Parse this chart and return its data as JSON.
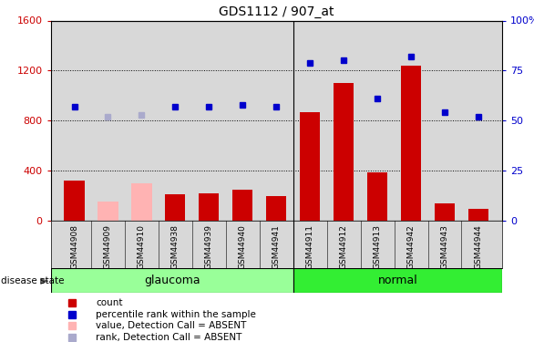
{
  "title": "GDS1112 / 907_at",
  "samples": [
    "GSM44908",
    "GSM44909",
    "GSM44910",
    "GSM44938",
    "GSM44939",
    "GSM44940",
    "GSM44941",
    "GSM44911",
    "GSM44912",
    "GSM44913",
    "GSM44942",
    "GSM44943",
    "GSM44944"
  ],
  "glaucoma_count": 7,
  "counts": [
    320,
    155,
    295,
    210,
    220,
    250,
    195,
    870,
    1100,
    385,
    1240,
    140,
    95
  ],
  "ranks": [
    57,
    52,
    53,
    57,
    57,
    58,
    57,
    79,
    80,
    61,
    82,
    54,
    52
  ],
  "absent": [
    false,
    true,
    true,
    false,
    false,
    false,
    false,
    false,
    false,
    false,
    false,
    false,
    false
  ],
  "count_color_normal": "#cc0000",
  "count_color_absent": "#ffb3b3",
  "rank_color_normal": "#0000cc",
  "rank_color_absent": "#aaaacc",
  "ylim_left": [
    0,
    1600
  ],
  "ylim_right": [
    0,
    100
  ],
  "yticks_left": [
    0,
    400,
    800,
    1200,
    1600
  ],
  "ytick_labels_left": [
    "0",
    "400",
    "800",
    "1200",
    "1600"
  ],
  "yticks_right": [
    0,
    25,
    50,
    75,
    100
  ],
  "ytick_labels_right": [
    "0",
    "25",
    "50",
    "75",
    "100%"
  ],
  "group_colors": {
    "glaucoma": "#99ff99",
    "normal": "#33ee33"
  },
  "disease_state_label": "disease state",
  "bg_color": "#d8d8d8",
  "legend_items": [
    {
      "color": "#cc0000",
      "marker": "s",
      "label": "count"
    },
    {
      "color": "#0000cc",
      "marker": "s",
      "label": "percentile rank within the sample"
    },
    {
      "color": "#ffb3b3",
      "marker": "s",
      "label": "value, Detection Call = ABSENT"
    },
    {
      "color": "#aaaacc",
      "marker": "s",
      "label": "rank, Detection Call = ABSENT"
    }
  ]
}
